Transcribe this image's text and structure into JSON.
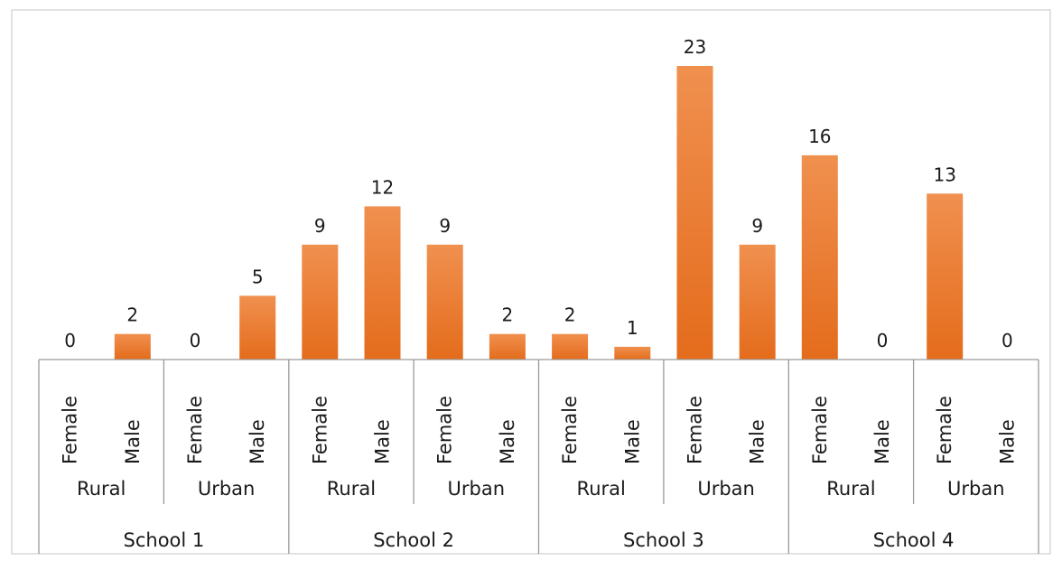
{
  "chart_data": {
    "type": "bar",
    "categories": [
      [
        "School 1",
        "Rural",
        "Female"
      ],
      [
        "School 1",
        "Rural",
        "Male"
      ],
      [
        "School 1",
        "Urban",
        "Female"
      ],
      [
        "School 1",
        "Urban",
        "Male"
      ],
      [
        "School 2",
        "Rural",
        "Female"
      ],
      [
        "School 2",
        "Rural",
        "Male"
      ],
      [
        "School 2",
        "Urban",
        "Female"
      ],
      [
        "School 2",
        "Urban",
        "Male"
      ],
      [
        "School 3",
        "Rural",
        "Female"
      ],
      [
        "School 3",
        "Rural",
        "Male"
      ],
      [
        "School 3",
        "Urban",
        "Female"
      ],
      [
        "School 3",
        "Urban",
        "Male"
      ],
      [
        "School 4",
        "Rural",
        "Female"
      ],
      [
        "School 4",
        "Rural",
        "Male"
      ],
      [
        "School 4",
        "Urban",
        "Female"
      ],
      [
        "School 4",
        "Urban",
        "Male"
      ]
    ],
    "values": [
      0,
      2,
      0,
      5,
      9,
      12,
      9,
      2,
      2,
      1,
      23,
      9,
      16,
      0,
      13,
      0
    ],
    "schools": [
      "School 1",
      "School 2",
      "School 3",
      "School 4"
    ],
    "areas": [
      "Rural",
      "Urban"
    ],
    "genders": [
      "Female",
      "Male"
    ],
    "ylim": [
      0,
      24
    ],
    "data_labels": true,
    "grid": false,
    "legend": "none",
    "bar_color_top": "#F0904F",
    "bar_color_bottom": "#E46C1C",
    "axis_color": "#9a9a9a"
  }
}
